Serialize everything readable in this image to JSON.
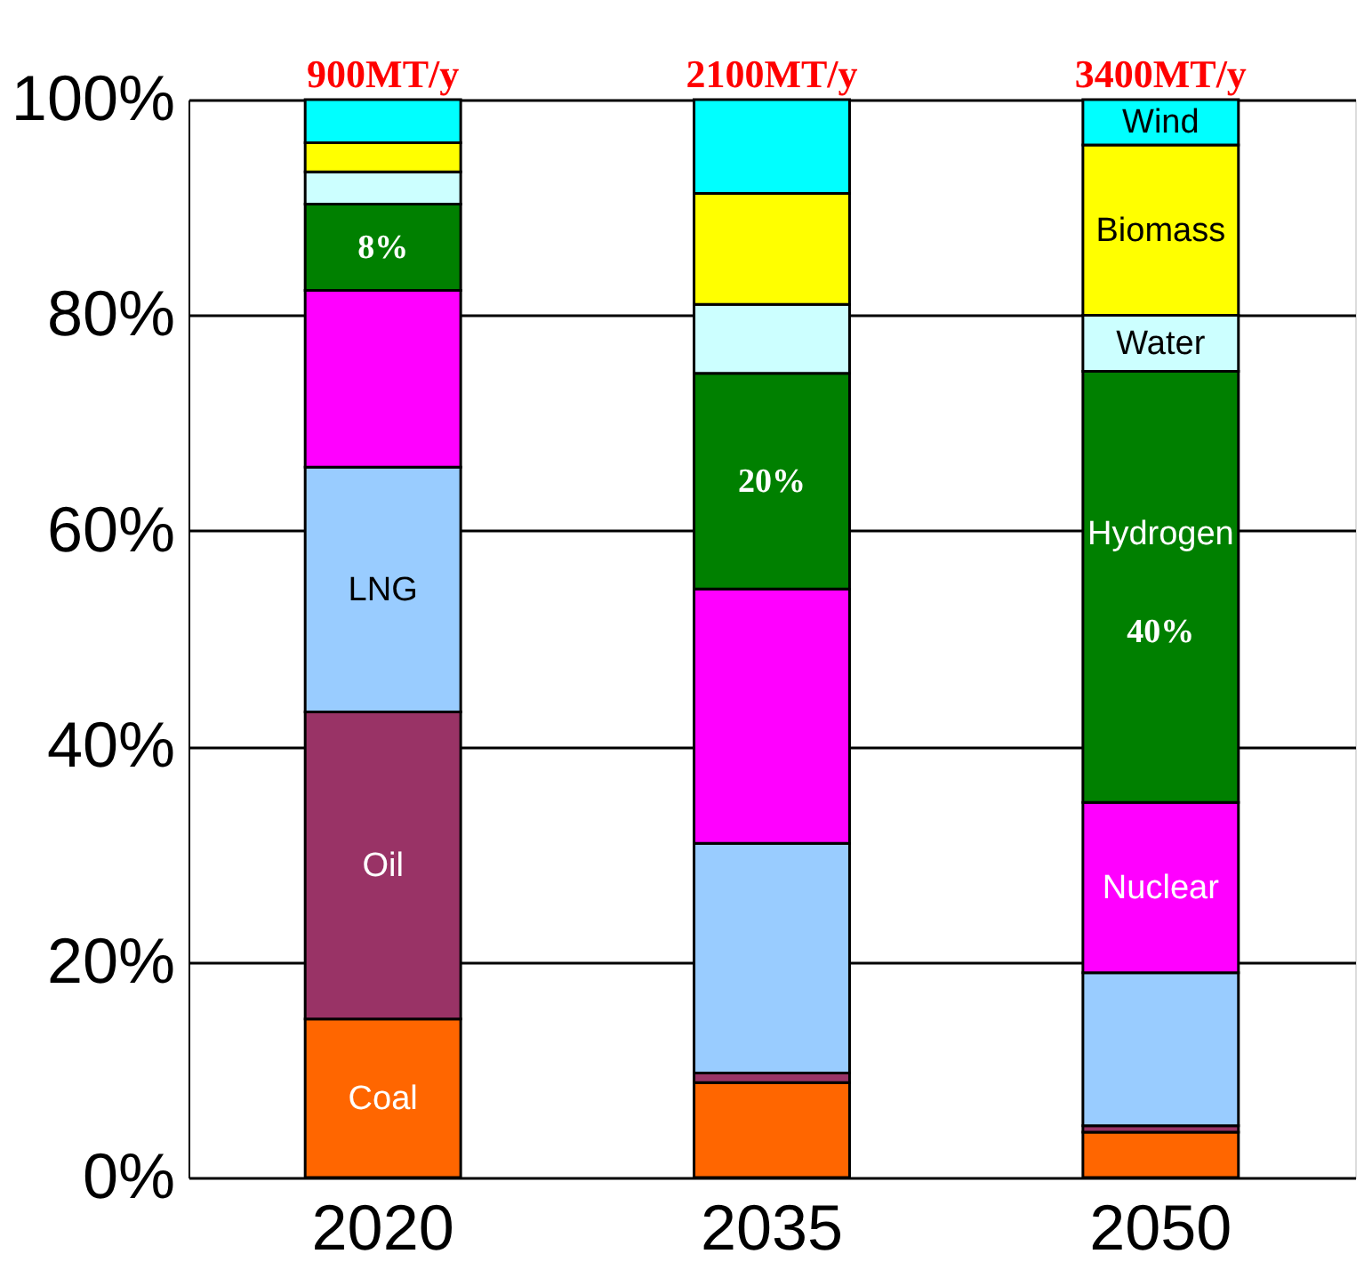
{
  "chart_data": {
    "type": "bar",
    "stacked": true,
    "categories": [
      "2020",
      "2035",
      "2050"
    ],
    "series": [
      {
        "name": "Coal",
        "color": "#ff6600",
        "values": [
          14.7,
          8.8,
          4.2
        ]
      },
      {
        "name": "Oil",
        "color": "#993366",
        "values": [
          28.5,
          0.9,
          0.6
        ]
      },
      {
        "name": "LNG",
        "color": "#99ccff",
        "values": [
          22.7,
          21.3,
          14.2
        ]
      },
      {
        "name": "Nuclear",
        "color": "#ff00ff",
        "values": [
          16.4,
          23.6,
          15.8
        ]
      },
      {
        "name": "Hydrogen",
        "color": "#008000",
        "values": [
          8,
          20,
          40
        ],
        "value_labels": [
          "8%",
          "20%",
          "40%"
        ]
      },
      {
        "name": "Water",
        "color": "#ccffff",
        "values": [
          3.0,
          6.4,
          5.2
        ]
      },
      {
        "name": "Biomass",
        "color": "#ffff00",
        "values": [
          2.7,
          10.3,
          15.8
        ]
      },
      {
        "name": "Wind",
        "color": "#00ffff",
        "values": [
          4.0,
          8.7,
          4.2
        ]
      }
    ],
    "ylim": [
      0,
      100
    ],
    "yticks": [
      {
        "value": 0,
        "label": "0%"
      },
      {
        "value": 20,
        "label": "20%"
      },
      {
        "value": 40,
        "label": "40%"
      },
      {
        "value": 60,
        "label": "60%"
      },
      {
        "value": 80,
        "label": "80%"
      },
      {
        "value": 100,
        "label": "100%"
      }
    ],
    "grid": "y",
    "annotations": [
      "900MT/y",
      "2100MT/y",
      "3400MT/y"
    ]
  }
}
